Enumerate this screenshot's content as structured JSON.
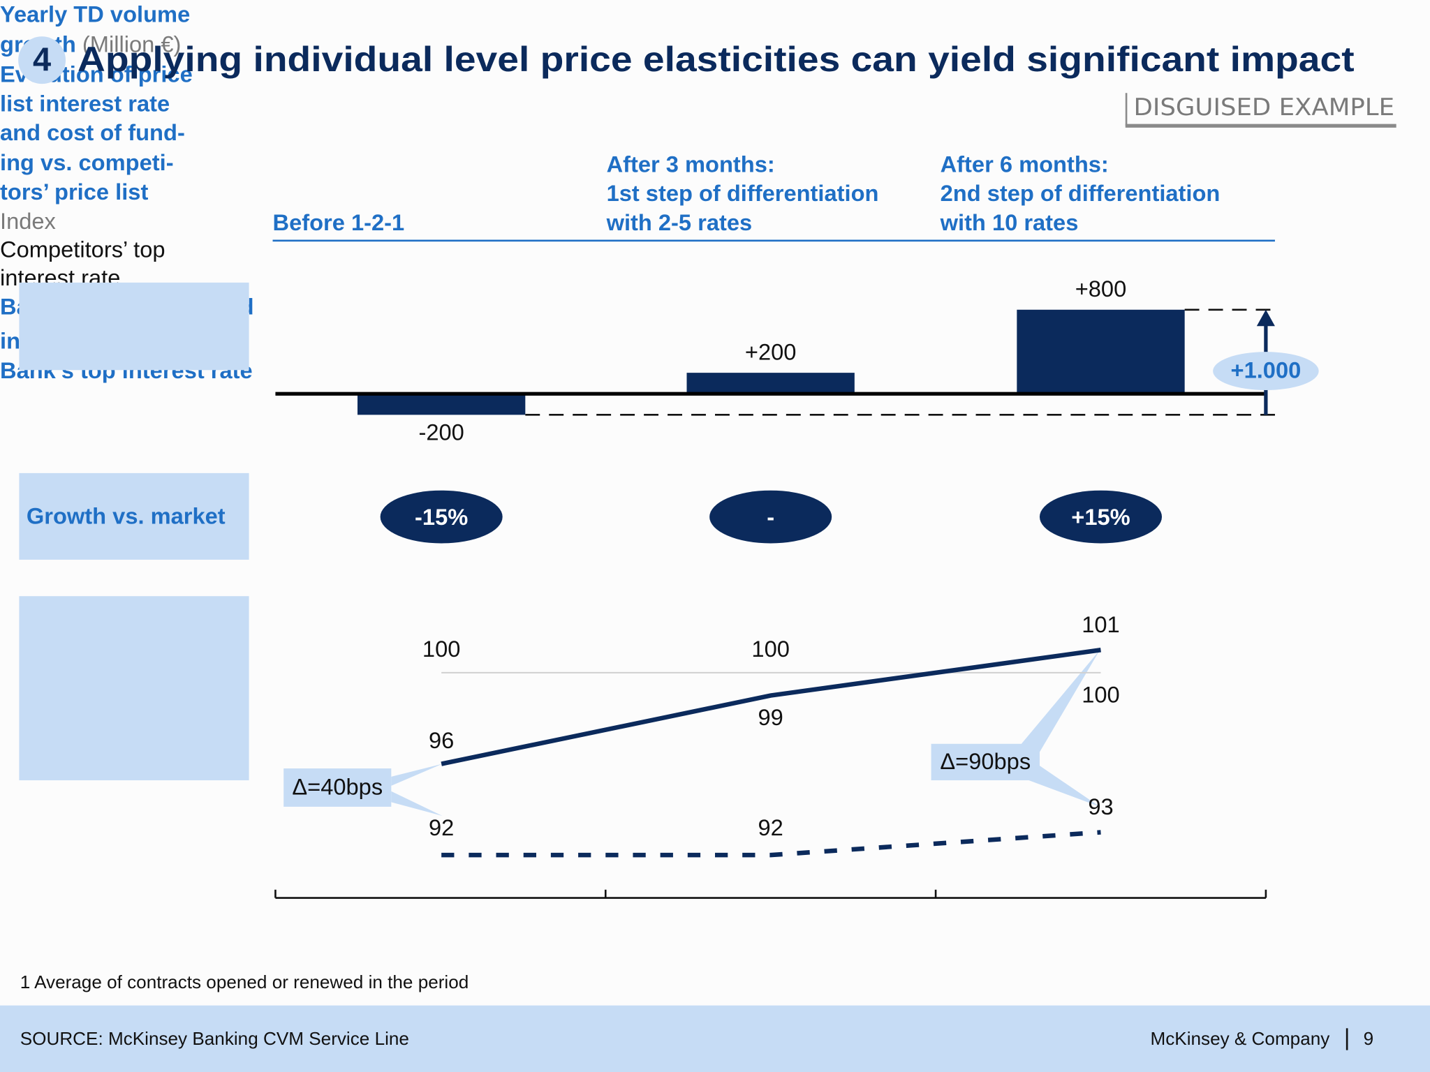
{
  "header": {
    "number": "4",
    "title": "Applying individual level price elasticities can yield significant impact",
    "tag": "DISGUISED EXAMPLE"
  },
  "chart_data": [
    {
      "type": "bar",
      "ylabel": "Yearly TD volume growth",
      "unit": "(Million €)",
      "categories": [
        [
          "Before 1-2-1"
        ],
        [
          "After 3 months:",
          "1st step of differentiation",
          "with 2-5 rates"
        ],
        [
          "After 6 months:",
          "2nd step of differentiation",
          "with 10 rates"
        ]
      ],
      "values": [
        -200,
        200,
        800
      ],
      "value_labels": [
        "-200",
        "+200",
        "+800"
      ],
      "color": "#0b2a5c",
      "ylim": [
        -300,
        1000
      ],
      "total": {
        "value": 1000,
        "label": "+1.000"
      }
    },
    {
      "type": "line",
      "ylabel": [
        "Evolution of price",
        "list interest rate",
        "and cost of fund-",
        "ing vs. competi-",
        "tors’ price list"
      ],
      "unit": "Index",
      "ylim": [
        90,
        102
      ],
      "series": [
        {
          "name": "Bank’s top interest rate",
          "color": "#0b2a5c",
          "label_color": "#1f6fc5",
          "values": [
            96,
            99,
            101
          ]
        },
        {
          "name": "Competitors’ top interest rate",
          "color": "#d0d0d0",
          "label_color": "#111111",
          "values": [
            100,
            100,
            100
          ]
        },
        {
          "name": "Bank’s average booked interest rate",
          "name_marker": "1",
          "color": "#0b2a5c",
          "label_color": "#1f6fc5",
          "dashed": true,
          "values": [
            92,
            92,
            93
          ]
        }
      ],
      "annotations": [
        "Δ=40bps",
        "Δ=90bps"
      ]
    }
  ],
  "growth_vs_market": {
    "label": "Growth vs. market",
    "badges": [
      "-15%",
      "-",
      "+15%"
    ]
  },
  "footnote": "1 Average of contracts opened or renewed in the period",
  "footer": {
    "source": "SOURCE: McKinsey Banking CVM Service Line",
    "brand": "McKinsey & Company",
    "page": 9
  }
}
